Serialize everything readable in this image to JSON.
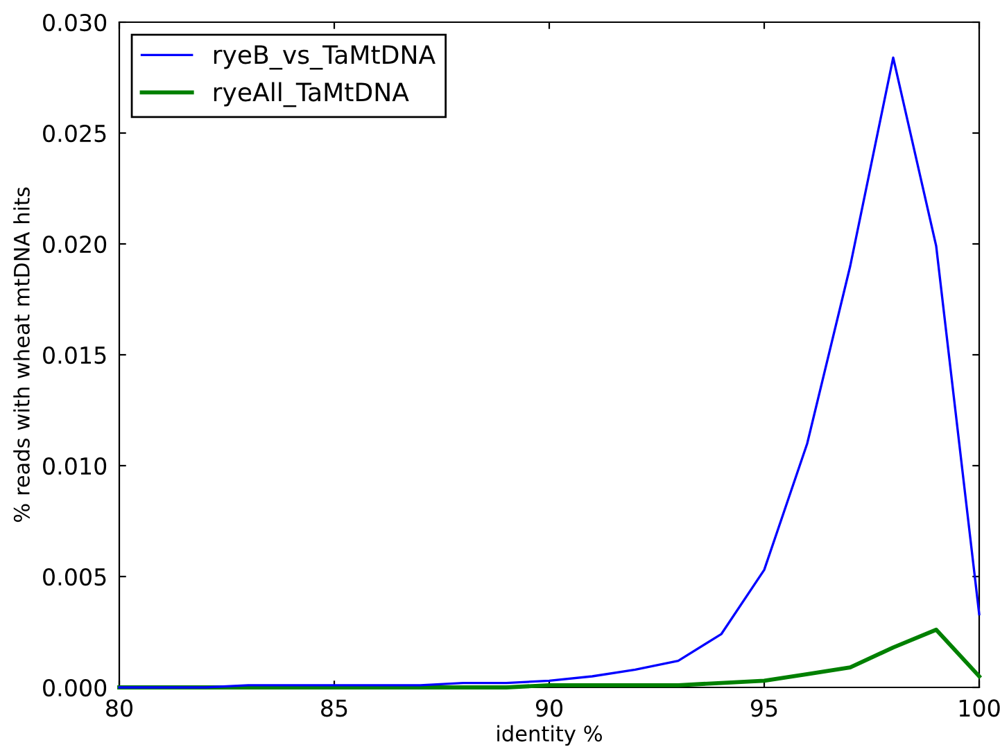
{
  "chart_data": {
    "type": "line",
    "xlabel": "identity %",
    "ylabel": "% reads with wheat mtDNA hits",
    "x": [
      80,
      81,
      82,
      83,
      84,
      85,
      86,
      87,
      88,
      89,
      90,
      91,
      92,
      93,
      94,
      95,
      96,
      97,
      98,
      99,
      100
    ],
    "series": [
      {
        "name": "ryeB_vs_TaMtDNA",
        "color": "#0000ff",
        "values": [
          0,
          0,
          0,
          0.0001,
          0.0001,
          0.0001,
          0.0001,
          0.0001,
          0.0002,
          0.0002,
          0.0003,
          0.0005,
          0.0008,
          0.0012,
          0.0024,
          0.0053,
          0.011,
          0.019,
          0.0284,
          0.0199,
          0.0033
        ]
      },
      {
        "name": "ryeAll_TaMtDNA",
        "color": "#008000",
        "values": [
          0,
          0,
          0,
          0,
          0,
          0,
          0,
          0,
          0,
          0,
          0.0001,
          0.0001,
          0.0001,
          0.0001,
          0.0002,
          0.0003,
          0.0006,
          0.0009,
          0.0018,
          0.0026,
          0.0005
        ]
      }
    ],
    "xlim": [
      80,
      100
    ],
    "xticks": [
      80,
      85,
      90,
      95,
      100
    ],
    "ylim": [
      0,
      0.03
    ],
    "yticks": [
      {
        "value": 0,
        "label": "0.000"
      },
      {
        "value": 0.005,
        "label": "0.005"
      },
      {
        "value": 0.01,
        "label": "0.010"
      },
      {
        "value": 0.015,
        "label": "0.015"
      },
      {
        "value": 0.02,
        "label": "0.020"
      },
      {
        "value": 0.025,
        "label": "0.025"
      },
      {
        "value": 0.03,
        "label": "0.030"
      }
    ],
    "grid": false,
    "legend": "top left",
    "marker": "none",
    "line_style": "solid"
  }
}
